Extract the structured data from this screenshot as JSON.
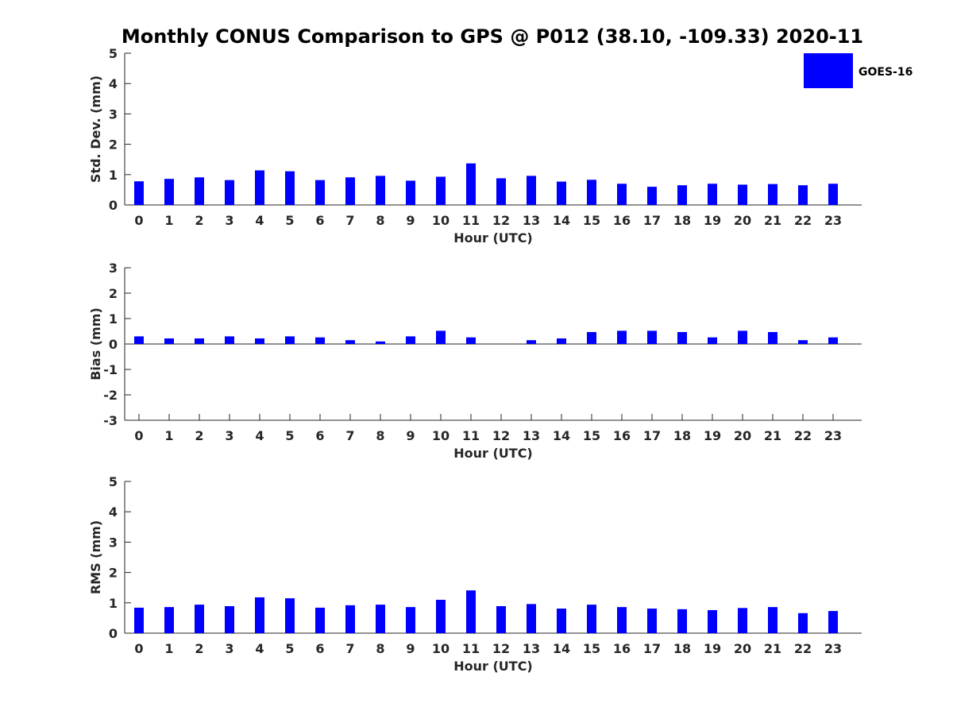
{
  "title": "Monthly CONUS Comparison to GPS @ P012 (38.10, -109.33) 2020-11",
  "legend": {
    "label": "GOES-16",
    "color": "#0000ff",
    "placement": "top-right"
  },
  "chart_data": [
    {
      "type": "bar",
      "xlabel": "Hour (UTC)",
      "ylabel": "Std. Dev. (mm)",
      "ylim": [
        0,
        5
      ],
      "yticks": [
        "0",
        "1",
        "2",
        "3",
        "4",
        "5"
      ],
      "categories": [
        "0",
        "1",
        "2",
        "3",
        "4",
        "5",
        "6",
        "7",
        "8",
        "9",
        "10",
        "11",
        "12",
        "13",
        "14",
        "15",
        "16",
        "17",
        "18",
        "19",
        "20",
        "21",
        "22",
        "23"
      ],
      "series": [
        {
          "name": "GOES-16",
          "color": "#0000ff",
          "values": [
            0.78,
            0.86,
            0.91,
            0.82,
            1.14,
            1.11,
            0.82,
            0.91,
            0.96,
            0.8,
            0.93,
            1.37,
            0.88,
            0.96,
            0.77,
            0.83,
            0.7,
            0.6,
            0.65,
            0.7,
            0.67,
            0.69,
            0.65,
            0.7
          ]
        }
      ]
    },
    {
      "type": "bar",
      "xlabel": "Hour (UTC)",
      "ylabel": "Bias (mm)",
      "ylim": [
        -3,
        3
      ],
      "yticks": [
        "-3",
        "-2",
        "-1",
        "0",
        "1",
        "2",
        "3"
      ],
      "categories": [
        "0",
        "1",
        "2",
        "3",
        "4",
        "5",
        "6",
        "7",
        "8",
        "9",
        "10",
        "11",
        "12",
        "13",
        "14",
        "15",
        "16",
        "17",
        "18",
        "19",
        "20",
        "21",
        "22",
        "23"
      ],
      "series": [
        {
          "name": "GOES-16",
          "color": "#0000ff",
          "values": [
            0.3,
            0.22,
            0.22,
            0.3,
            0.22,
            0.3,
            0.26,
            0.15,
            0.1,
            0.3,
            0.52,
            0.26,
            0.0,
            0.15,
            0.22,
            0.47,
            0.52,
            0.52,
            0.47,
            0.26,
            0.52,
            0.47,
            0.15,
            0.26
          ]
        }
      ]
    },
    {
      "type": "bar",
      "xlabel": "Hour (UTC)",
      "ylabel": "RMS (mm)",
      "ylim": [
        0,
        5
      ],
      "yticks": [
        "0",
        "1",
        "2",
        "3",
        "4",
        "5"
      ],
      "categories": [
        "0",
        "1",
        "2",
        "3",
        "4",
        "5",
        "6",
        "7",
        "8",
        "9",
        "10",
        "11",
        "12",
        "13",
        "14",
        "15",
        "16",
        "17",
        "18",
        "19",
        "20",
        "21",
        "22",
        "23"
      ],
      "series": [
        {
          "name": "GOES-16",
          "color": "#0000ff",
          "values": [
            0.84,
            0.86,
            0.94,
            0.89,
            1.18,
            1.15,
            0.84,
            0.92,
            0.94,
            0.86,
            1.1,
            1.41,
            0.89,
            0.96,
            0.81,
            0.94,
            0.86,
            0.81,
            0.79,
            0.76,
            0.83,
            0.86,
            0.66,
            0.73
          ]
        }
      ]
    }
  ]
}
